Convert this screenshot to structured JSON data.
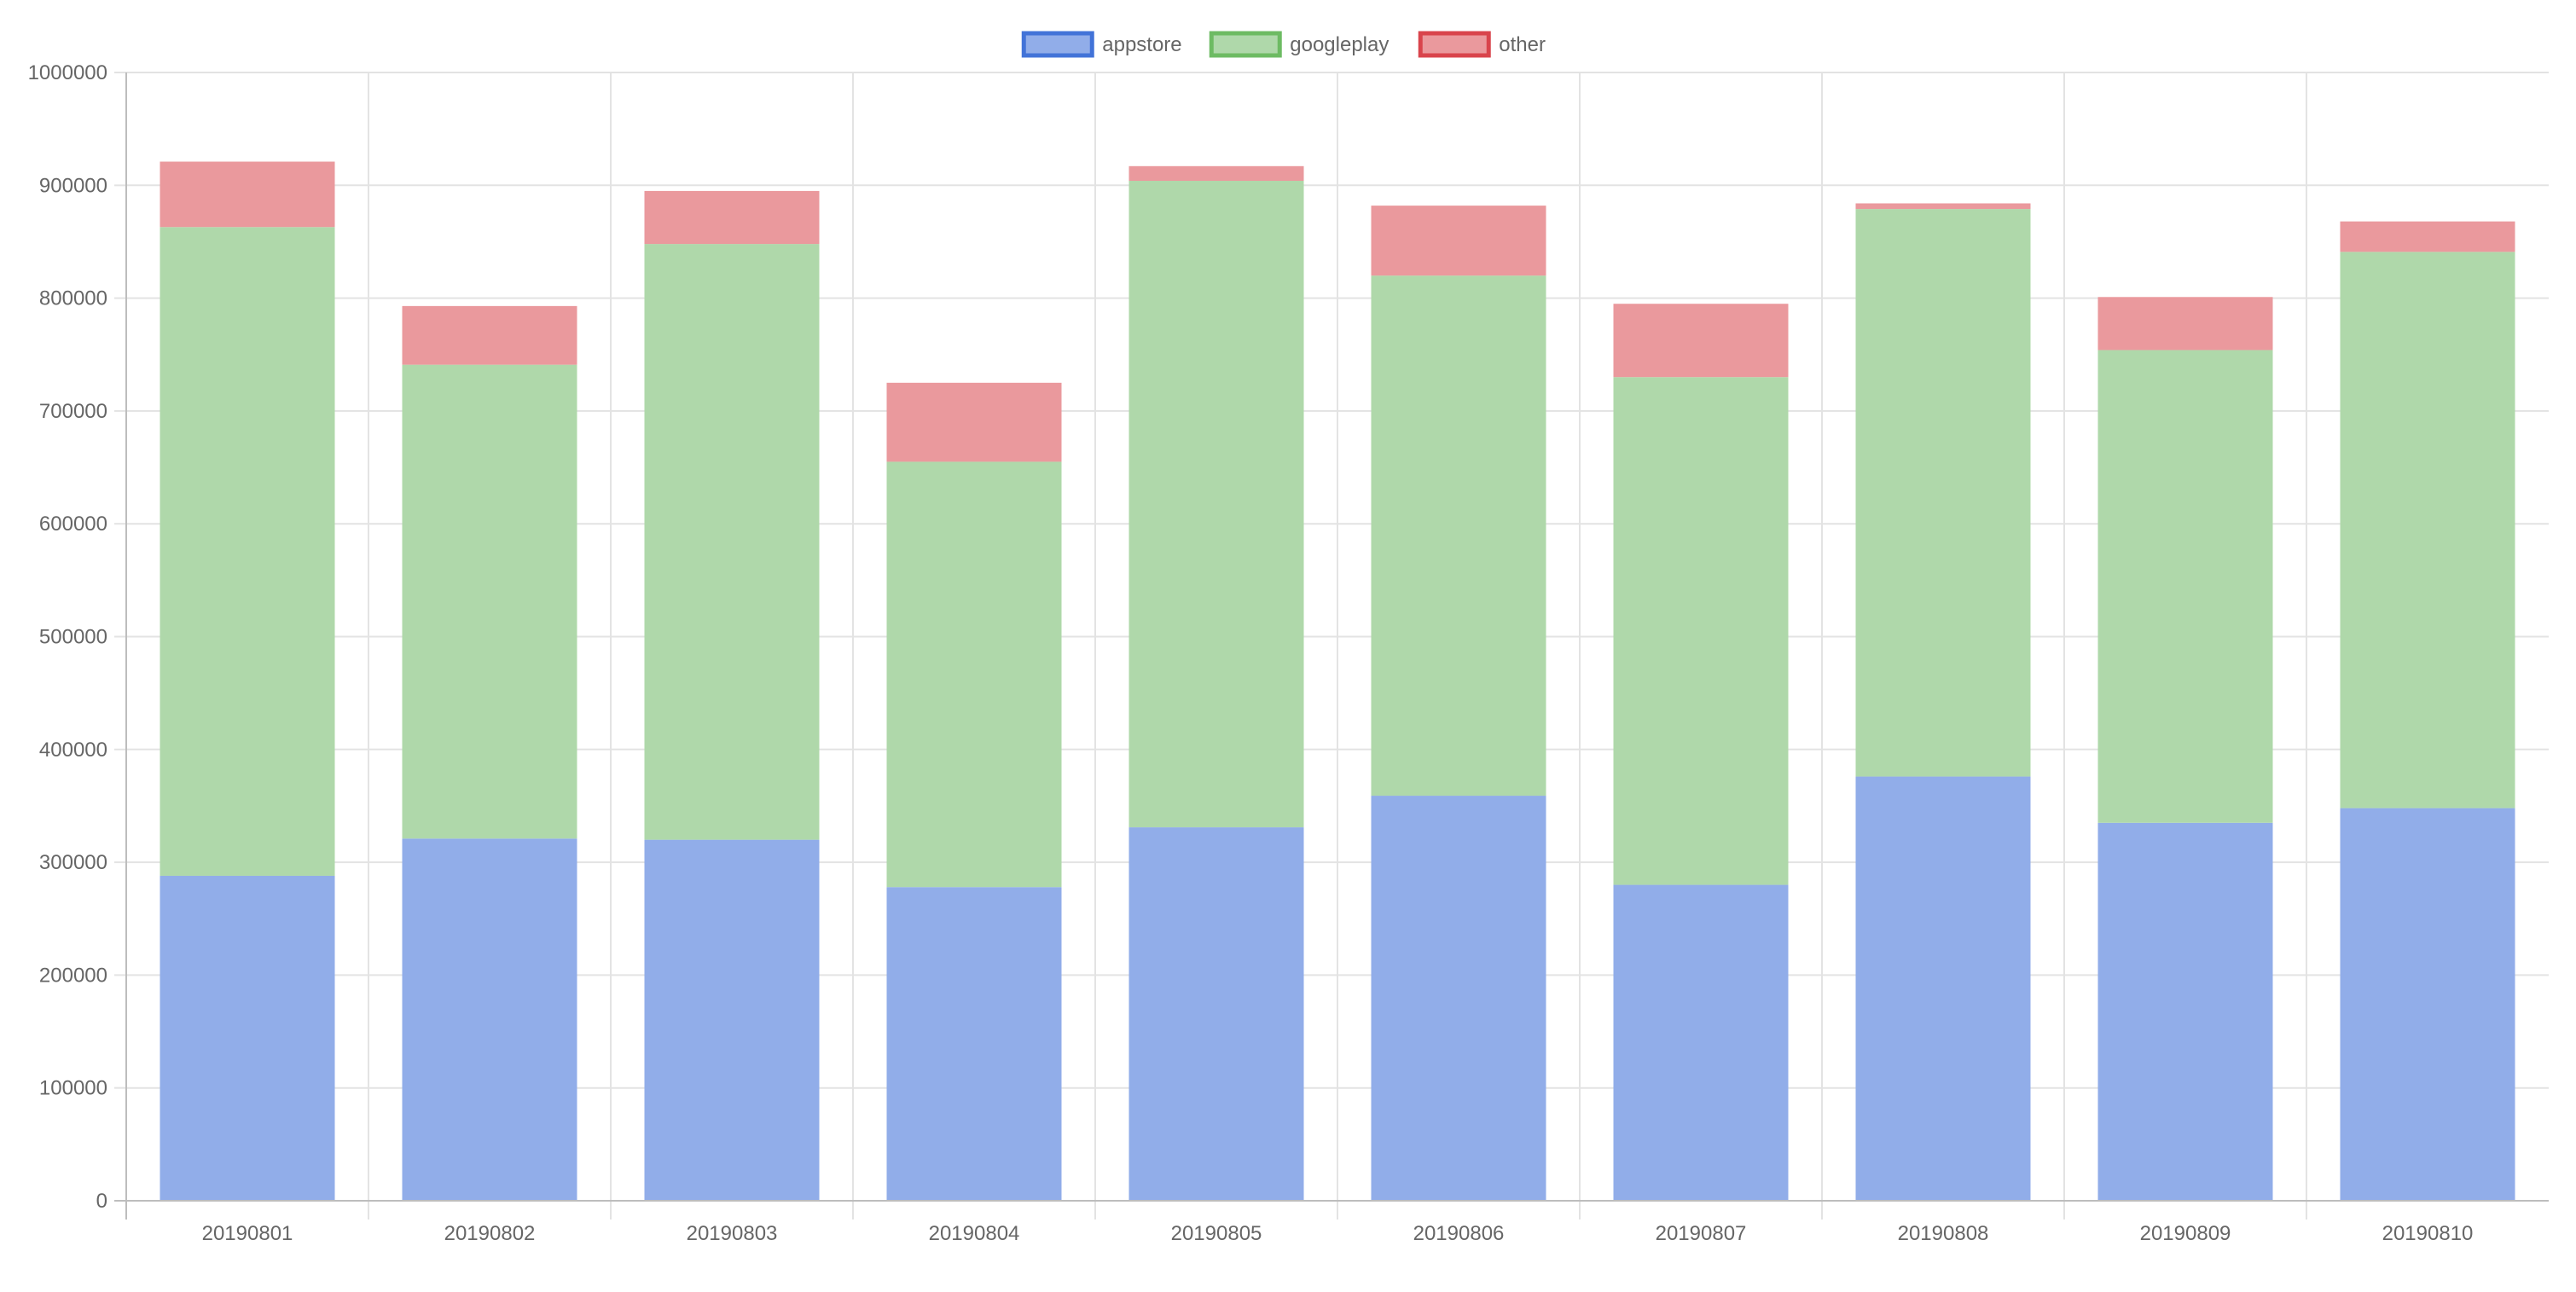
{
  "chart_data": {
    "type": "bar",
    "stacked": true,
    "categories": [
      "20190801",
      "20190802",
      "20190803",
      "20190804",
      "20190805",
      "20190806",
      "20190807",
      "20190808",
      "20190809",
      "20190810"
    ],
    "series": [
      {
        "name": "appstore",
        "values": [
          288000,
          321000,
          320000,
          278000,
          331000,
          359000,
          280000,
          376000,
          335000,
          348000
        ]
      },
      {
        "name": "googleplay",
        "values": [
          575000,
          420000,
          528000,
          377000,
          573000,
          461000,
          450000,
          503000,
          419000,
          493000
        ]
      },
      {
        "name": "other",
        "values": [
          58000,
          52000,
          47000,
          70000,
          13000,
          62000,
          65000,
          5000,
          47000,
          27000
        ]
      }
    ],
    "ylim": [
      0,
      1000000
    ],
    "yticks": [
      "0",
      "100000",
      "200000",
      "300000",
      "400000",
      "500000",
      "600000",
      "700000",
      "800000",
      "900000",
      "1000000"
    ],
    "legend_position": "top",
    "grid": true,
    "colors": {
      "appstore": {
        "fill": "#91ade9",
        "border": "#4273d8"
      },
      "googleplay": {
        "fill": "#afd8aa",
        "border": "#6dbb63"
      },
      "other": {
        "fill": "#ea999d",
        "border": "#d9444c"
      }
    },
    "grid_color": "#e3e3e3",
    "axis_color": "#bdbdbd",
    "text_color": "#666666"
  }
}
